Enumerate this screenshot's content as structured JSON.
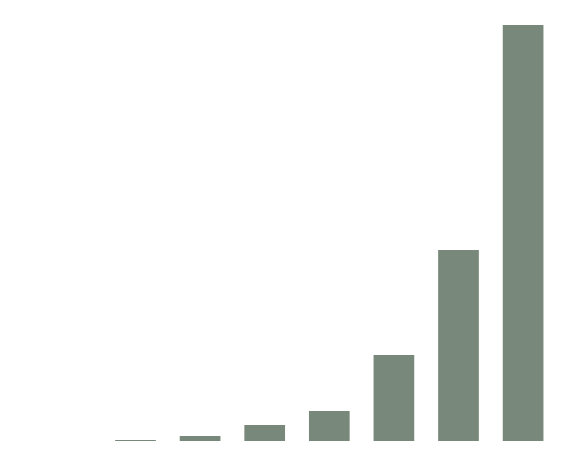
{
  "chart_data": {
    "type": "bar",
    "categories": [
      null,
      null,
      null,
      null,
      null,
      null,
      null
    ],
    "values": [
      1,
      5,
      16,
      30,
      86,
      191,
      416
    ],
    "color": "#78887a",
    "ylim": [
      0,
      416
    ]
  }
}
